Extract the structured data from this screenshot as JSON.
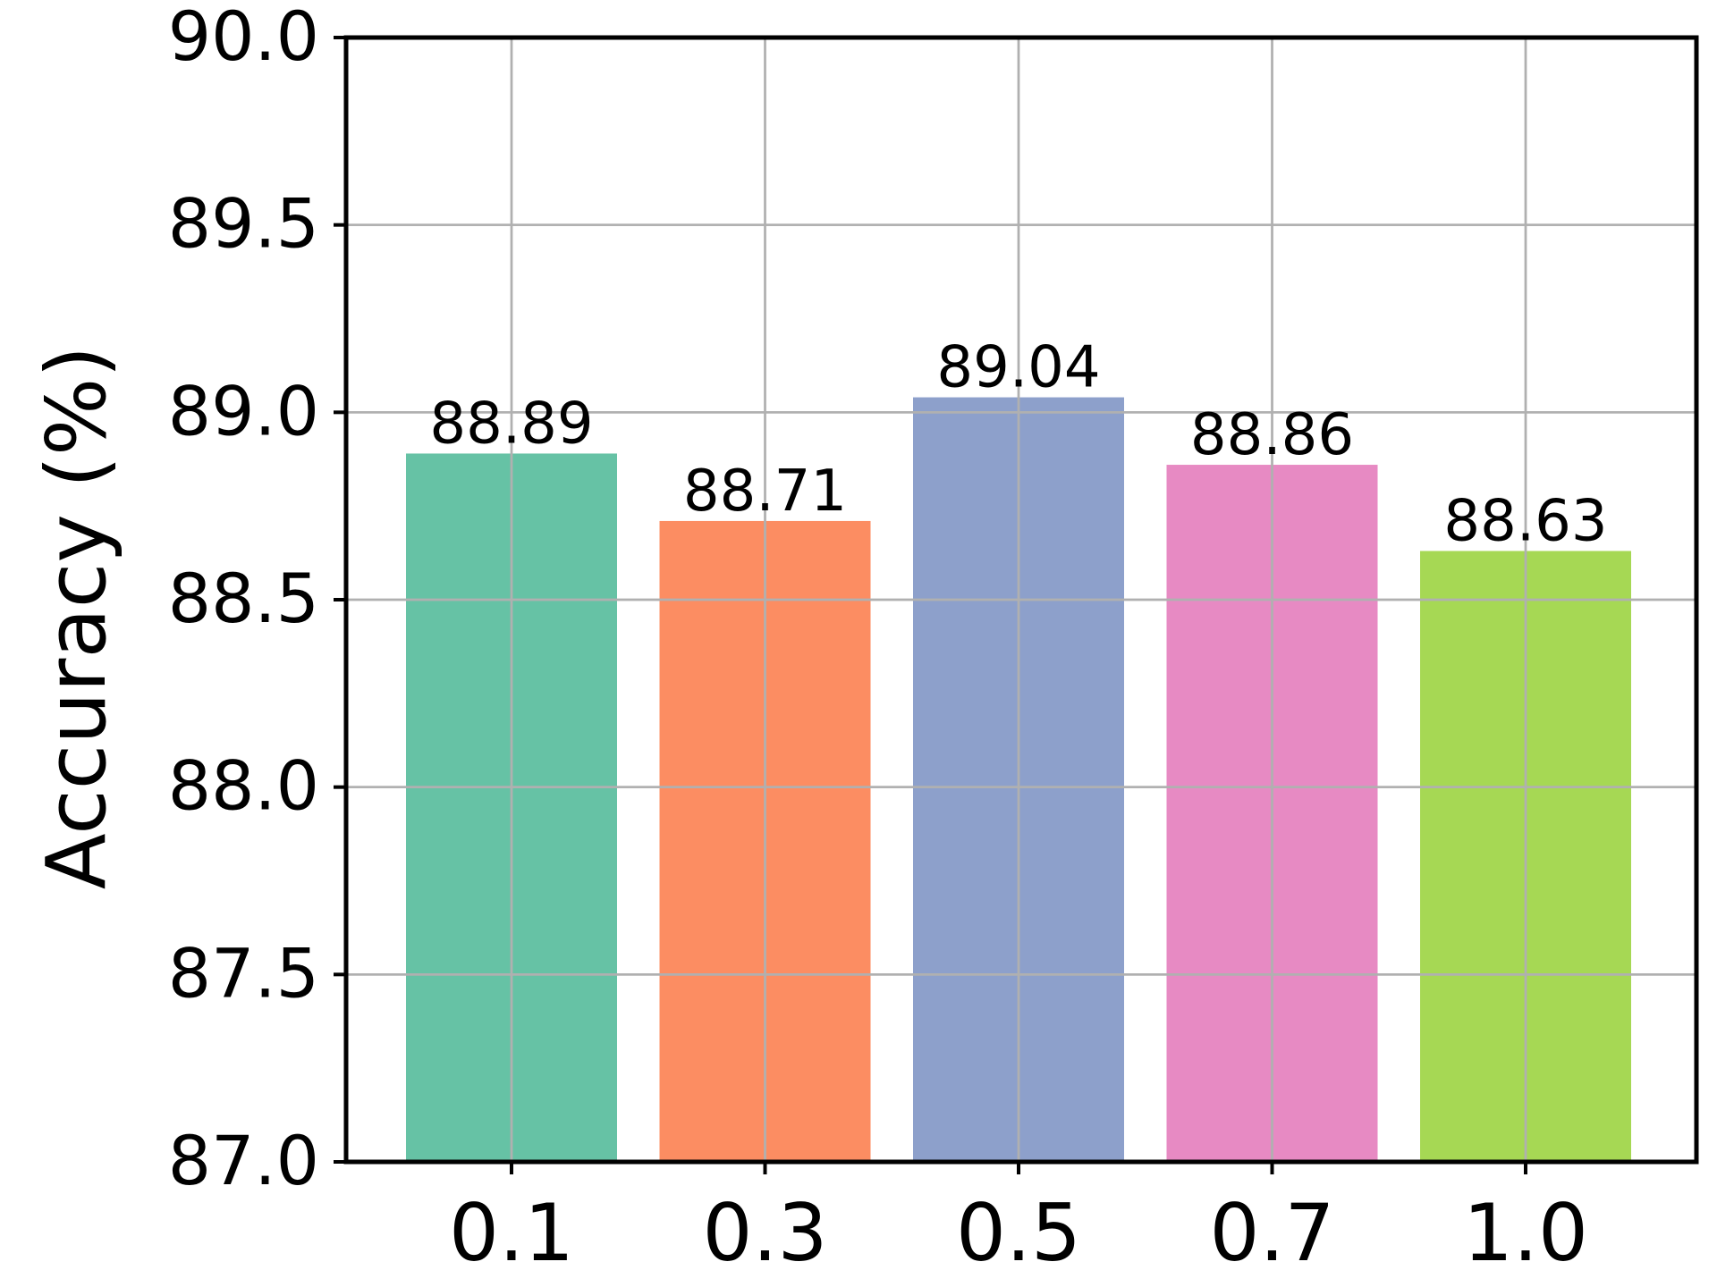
{
  "chart_data": {
    "type": "bar",
    "title": "",
    "xlabel": "",
    "ylabel": "Accuracy (%)",
    "categories": [
      "0.1",
      "0.3",
      "0.5",
      "0.7",
      "1.0"
    ],
    "values": [
      88.89,
      88.71,
      89.04,
      88.86,
      88.63
    ],
    "data_labels": [
      "88.89",
      "88.71",
      "89.04",
      "88.86",
      "88.63"
    ],
    "colors": [
      "#66c2a5",
      "#fc8d62",
      "#8da0cb",
      "#e78ac3",
      "#a6d854"
    ],
    "ylim": [
      87.0,
      90.0
    ],
    "yticks": [
      87.0,
      87.5,
      88.0,
      88.5,
      89.0,
      89.5,
      90.0
    ],
    "ytick_labels": [
      "87.0",
      "87.5",
      "88.0",
      "88.5",
      "89.0",
      "89.5",
      "90.0"
    ],
    "grid": true,
    "grid_color": "#b0b0b0",
    "axis_color": "#000000"
  }
}
